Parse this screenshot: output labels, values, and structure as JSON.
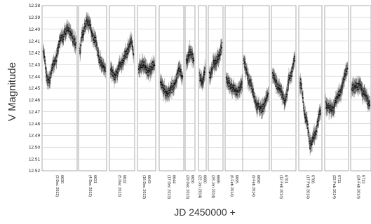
{
  "chart_data": {
    "type": "scatter",
    "ylabel": "V Magnitude",
    "xlabel": "JD 2450000 +",
    "ylim": [
      12.38,
      12.52
    ],
    "y_inverted": true,
    "yticks": [
      "12.38",
      "12.39",
      "12.40",
      "12.41",
      "12.42",
      "12.43",
      "12.44",
      "12.45",
      "12.46",
      "12.47",
      "12.48",
      "12.49",
      "12.50",
      "12.51",
      "12.52"
    ],
    "grid": true,
    "error_bars": true,
    "marker_color": "#000000",
    "panels": [
      {
        "jd": "6630",
        "date": "(3 Dec 2013)",
        "series": [
          [
            0.0,
            12.42
          ],
          [
            0.15,
            12.445
          ],
          [
            0.35,
            12.428
          ],
          [
            0.55,
            12.408
          ],
          [
            0.75,
            12.4
          ],
          [
            1.0,
            12.412
          ]
        ]
      },
      {
        "jd": "6631",
        "date": "(4 Dec 2013)",
        "series": [
          [
            0.0,
            12.42
          ],
          [
            0.1,
            12.405
          ],
          [
            0.3,
            12.393
          ],
          [
            0.6,
            12.41
          ],
          [
            0.8,
            12.428
          ],
          [
            1.0,
            12.434
          ]
        ]
      },
      {
        "jd": "6632",
        "date": "(5 Dec 2013)",
        "series": [
          [
            0.0,
            12.434
          ],
          [
            0.2,
            12.44
          ],
          [
            0.45,
            12.43
          ],
          [
            0.7,
            12.42
          ],
          [
            0.9,
            12.41
          ],
          [
            1.0,
            12.42
          ]
        ]
      },
      {
        "jd": "6643",
        "date": "(16 Dec 2013)",
        "series": [
          [
            0.0,
            12.433
          ],
          [
            0.3,
            12.43
          ],
          [
            0.6,
            12.436
          ],
          [
            1.0,
            12.43
          ]
        ]
      },
      {
        "jd": "6644",
        "date": "(17 Dec 2013)",
        "series": [
          [
            0.0,
            12.445
          ],
          [
            0.3,
            12.455
          ],
          [
            0.6,
            12.448
          ],
          [
            0.85,
            12.435
          ],
          [
            1.0,
            12.44
          ]
        ]
      },
      {
        "jd": "6656",
        "date": "(29 Dec 2013)",
        "series": [
          [
            0.0,
            12.427
          ],
          [
            0.5,
            12.42
          ],
          [
            1.0,
            12.425
          ]
        ]
      },
      {
        "jd": "6680",
        "date": "(22 Jan 2014)",
        "series": [
          [
            0.0,
            12.44
          ],
          [
            0.5,
            12.445
          ],
          [
            1.0,
            12.435
          ]
        ]
      },
      {
        "jd": "6686",
        "date": "(28 Jan 2014)",
        "series": [
          [
            0.0,
            12.44
          ],
          [
            0.4,
            12.43
          ],
          [
            0.7,
            12.425
          ],
          [
            1.0,
            12.415
          ]
        ]
      },
      {
        "jd": "6695",
        "date": "(6 Feb 2014)",
        "series": [
          [
            0.0,
            12.443
          ],
          [
            0.4,
            12.45
          ],
          [
            0.7,
            12.453
          ],
          [
            1.0,
            12.447
          ]
        ]
      },
      {
        "jd": "6698",
        "date": "(9 Feb 2014)",
        "series": [
          [
            0.0,
            12.428
          ],
          [
            0.25,
            12.445
          ],
          [
            0.55,
            12.465
          ],
          [
            0.75,
            12.468
          ],
          [
            1.0,
            12.455
          ]
        ]
      },
      {
        "jd": "6701",
        "date": "(12 Feb 2014)",
        "series": [
          [
            0.0,
            12.44
          ],
          [
            0.3,
            12.45
          ],
          [
            0.55,
            12.46
          ],
          [
            0.8,
            12.44
          ],
          [
            1.0,
            12.425
          ]
        ]
      },
      {
        "jd": "6706",
        "date": "(17 Feb 2014)",
        "series": [
          [
            0.0,
            12.445
          ],
          [
            0.3,
            12.475
          ],
          [
            0.5,
            12.498
          ],
          [
            0.7,
            12.49
          ],
          [
            1.0,
            12.47
          ]
        ]
      },
      {
        "jd": "6711",
        "date": "(22 Feb 2014)",
        "series": [
          [
            0.0,
            12.465
          ],
          [
            0.3,
            12.468
          ],
          [
            0.6,
            12.455
          ],
          [
            1.0,
            12.435
          ]
        ]
      },
      {
        "jd": "6713",
        "date": "(24 Feb 2014)",
        "series": [
          [
            0.0,
            12.45
          ],
          [
            0.4,
            12.447
          ],
          [
            0.7,
            12.455
          ],
          [
            1.0,
            12.463
          ]
        ]
      }
    ]
  }
}
